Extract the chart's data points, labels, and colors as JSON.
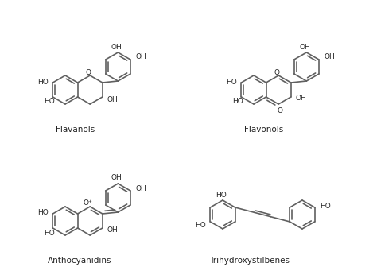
{
  "bg": "#ffffff",
  "lc": "#606060",
  "lw": 1.2,
  "fs": 6.5,
  "label_flavanols": "Flavanols",
  "label_flavonols": "Flavonols",
  "label_anthocyanidins": "Anthocyanidins",
  "label_trihydroxystilbenes": "Trihydroxystilbenes"
}
